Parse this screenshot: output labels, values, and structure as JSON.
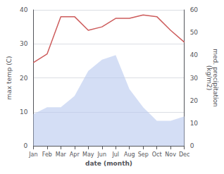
{
  "chart_data": {
    "type": "line",
    "xlabel": "date (month)",
    "ylabel": "max temp (C)",
    "y2label": "med. precipitation\n(kg/m2)",
    "categories": [
      "Jan",
      "Feb",
      "Mar",
      "Apr",
      "May",
      "Jun",
      "Jul",
      "Aug",
      "Sep",
      "Oct",
      "Nov",
      "Dec"
    ],
    "series": [
      {
        "type": "area",
        "axis": "y2",
        "color": "#b8c8ee",
        "values": [
          14,
          17,
          17,
          22,
          33,
          38,
          40,
          25,
          17,
          11,
          11,
          13
        ]
      },
      {
        "type": "line",
        "color": "#cd5c5c",
        "values": [
          24.5,
          27.0,
          38.0,
          38.0,
          34.0,
          35.0,
          37.5,
          37.5,
          38.5,
          38.0,
          34.0,
          30.5
        ]
      }
    ],
    "ylim": [
      0,
      40
    ],
    "yticks": [
      0,
      10,
      20,
      30,
      40
    ],
    "y2lim": [
      0,
      60
    ],
    "y2ticks": [
      0,
      10,
      20,
      30,
      40,
      50,
      60
    ],
    "grid": true
  }
}
